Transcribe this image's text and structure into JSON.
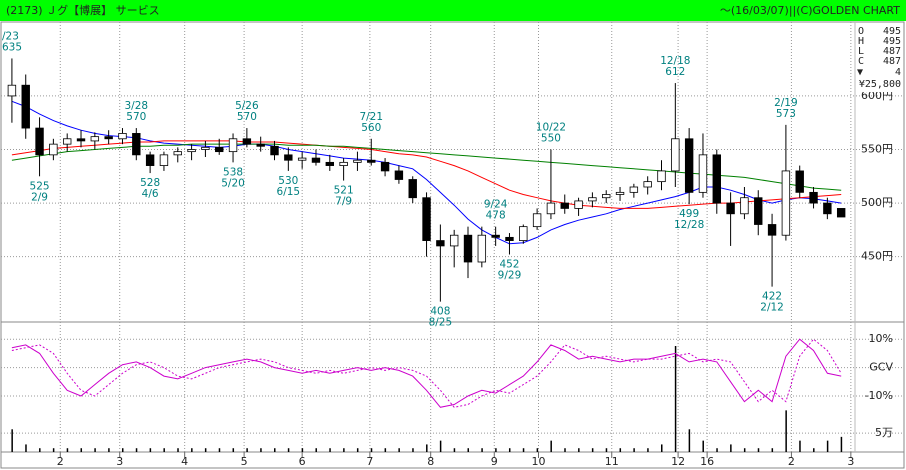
{
  "chart_data": {
    "type": "candlestick",
    "title": "(2173) Ｊグ【博展】 サービス",
    "subtitle": "～(16/03/07)||(C)GOLDEN CHART",
    "xlim": [
      -0.5,
      61
    ],
    "xticks": [
      {
        "value": 3.5,
        "label": "2"
      },
      {
        "value": 7.8,
        "label": "3"
      },
      {
        "value": 12.5,
        "label": "4"
      },
      {
        "value": 16.8,
        "label": "5"
      },
      {
        "value": 21,
        "label": "6"
      },
      {
        "value": 25.9,
        "label": "7"
      },
      {
        "value": 30.3,
        "label": "8"
      },
      {
        "value": 34.9,
        "label": "9"
      },
      {
        "value": 38.1,
        "label": "10"
      },
      {
        "value": 43.4,
        "label": "11"
      },
      {
        "value": 48.2,
        "label": "12"
      },
      {
        "value": 50.3,
        "label": "16"
      },
      {
        "value": 56.4,
        "label": "2"
      },
      {
        "value": 60.7,
        "label": "3"
      }
    ],
    "ylim": [
      389,
      669
    ],
    "yticks": [
      {
        "value": 450,
        "label": "450円"
      },
      {
        "value": 500,
        "label": "500円"
      },
      {
        "value": 550,
        "label": "550円"
      },
      {
        "value": 600,
        "label": "600円"
      }
    ],
    "grid": true,
    "candles": {
      "open": [
        600,
        610,
        570,
        545,
        555,
        560,
        558,
        562,
        560,
        565,
        545,
        535,
        545,
        548,
        550,
        552,
        548,
        560,
        555,
        553,
        545,
        540,
        542,
        538,
        535,
        538,
        540,
        538,
        530,
        522,
        505,
        465,
        460,
        470,
        445,
        470,
        468,
        465,
        478,
        490,
        500,
        495,
        502,
        505,
        508,
        510,
        515,
        520,
        530,
        560,
        510,
        545,
        500,
        490,
        505,
        480,
        470,
        530,
        510,
        500,
        495
      ],
      "high": [
        635,
        620,
        580,
        560,
        565,
        568,
        566,
        568,
        570,
        570,
        548,
        548,
        552,
        555,
        558,
        560,
        565,
        570,
        562,
        558,
        552,
        548,
        550,
        545,
        542,
        548,
        560,
        542,
        535,
        525,
        510,
        480,
        475,
        478,
        478,
        478,
        472,
        480,
        495,
        550,
        508,
        505,
        510,
        512,
        515,
        518,
        525,
        540,
        612,
        570,
        565,
        550,
        510,
        515,
        512,
        490,
        573,
        535,
        515,
        505,
        495
      ],
      "low": [
        575,
        560,
        525,
        540,
        548,
        552,
        550,
        555,
        555,
        540,
        528,
        530,
        538,
        540,
        543,
        545,
        538,
        552,
        548,
        540,
        530,
        532,
        535,
        530,
        521,
        530,
        535,
        525,
        518,
        500,
        450,
        408,
        440,
        430,
        440,
        460,
        452,
        462,
        475,
        485,
        490,
        488,
        496,
        500,
        502,
        505,
        508,
        512,
        515,
        499,
        505,
        490,
        460,
        485,
        470,
        422,
        465,
        505,
        495,
        485,
        487
      ],
      "close": [
        610,
        570,
        545,
        555,
        560,
        558,
        562,
        560,
        565,
        545,
        535,
        545,
        548,
        550,
        552,
        548,
        560,
        555,
        553,
        545,
        540,
        542,
        538,
        535,
        538,
        540,
        538,
        530,
        522,
        505,
        465,
        460,
        470,
        445,
        470,
        468,
        465,
        478,
        490,
        500,
        495,
        502,
        505,
        508,
        510,
        515,
        520,
        530,
        560,
        510,
        545,
        500,
        490,
        505,
        480,
        470,
        530,
        510,
        500,
        490,
        487
      ],
      "up_color": "#ffffff",
      "down_color": "#000000",
      "edge_color": "#000000"
    },
    "series": [
      {
        "color": "#0000ff",
        "values": [
          595,
          590,
          583,
          577,
          572,
          568,
          565,
          563,
          562,
          561,
          558,
          556,
          555,
          554,
          553,
          552,
          553,
          555,
          555,
          553,
          550,
          548,
          546,
          544,
          542,
          541,
          540,
          538,
          535,
          532,
          522,
          510,
          498,
          485,
          475,
          468,
          462,
          463,
          468,
          475,
          480,
          484,
          487,
          490,
          494,
          497,
          500,
          503,
          506,
          510,
          515,
          515,
          512,
          508,
          503,
          500,
          503,
          505,
          504,
          502,
          500
        ]
      },
      {
        "color": "#ff0000",
        "values": [
          545,
          547,
          549,
          551,
          552,
          553,
          554,
          555,
          556,
          557,
          557,
          558,
          558,
          558,
          558,
          558,
          558,
          557,
          557,
          557,
          556,
          555,
          554,
          553,
          552,
          551,
          550,
          548,
          546,
          545,
          543,
          539,
          535,
          530,
          524,
          518,
          512,
          508,
          505,
          502,
          500,
          498,
          497,
          496,
          495,
          495,
          495,
          496,
          497,
          498,
          499,
          500,
          500,
          501,
          502,
          503,
          504,
          505,
          506,
          507,
          508
        ]
      },
      {
        "color": "#008000",
        "values": [
          540,
          542,
          544,
          546,
          548,
          549,
          550,
          551,
          552,
          553,
          553,
          554,
          554,
          555,
          555,
          555,
          555,
          555,
          555,
          555,
          554,
          554,
          554,
          553,
          553,
          552,
          551,
          550,
          549,
          548,
          547,
          546,
          545,
          544,
          543,
          542,
          541,
          540,
          539,
          538,
          537,
          536,
          535,
          534,
          533,
          532,
          531,
          530,
          529,
          528,
          527,
          526,
          525,
          524,
          522,
          520,
          518,
          516,
          514,
          513,
          512
        ]
      }
    ],
    "annotations": [
      {
        "index": 0,
        "price": 635,
        "date": "/23",
        "side": "high"
      },
      {
        "index": 2,
        "price": 525,
        "date": "2/9",
        "side": "low"
      },
      {
        "index": 9,
        "price": 570,
        "date": "3/28",
        "side": "high"
      },
      {
        "index": 10,
        "price": 528,
        "date": "4/6",
        "side": "low"
      },
      {
        "index": 16,
        "price": 538,
        "date": "5/20",
        "side": "low"
      },
      {
        "index": 17,
        "price": 570,
        "date": "5/26",
        "side": "high"
      },
      {
        "index": 20,
        "price": 530,
        "date": "6/15",
        "side": "low"
      },
      {
        "index": 24,
        "price": 521,
        "date": "7/9",
        "side": "low"
      },
      {
        "index": 26,
        "price": 560,
        "date": "7/21",
        "side": "high"
      },
      {
        "index": 31,
        "price": 408,
        "date": "8/25",
        "side": "low"
      },
      {
        "index": 35,
        "price": 478,
        "date": "9/24",
        "side": "high"
      },
      {
        "index": 36,
        "price": 452,
        "date": "9/29",
        "side": "low"
      },
      {
        "index": 39,
        "price": 550,
        "date": "10/22",
        "side": "high"
      },
      {
        "index": 48,
        "price": 612,
        "date": "12/18",
        "side": "high"
      },
      {
        "index": 49,
        "price": 499,
        "date": "12/28",
        "side": "low"
      },
      {
        "index": 55,
        "price": 422,
        "date": "2/12",
        "side": "low"
      },
      {
        "index": 56,
        "price": 573,
        "date": "2/19",
        "side": "high"
      }
    ],
    "oscillator": {
      "ylim": [
        -16,
        15
      ],
      "yticks": [
        {
          "value": 10,
          "label": "10%"
        },
        {
          "value": 0,
          "label": "GCV"
        },
        {
          "value": -10,
          "label": "-10%"
        }
      ],
      "series": [
        {
          "color": "#cc00cc",
          "dashed": false,
          "values": [
            7,
            8,
            5,
            -2,
            -8,
            -10,
            -6,
            -2,
            1,
            2,
            0,
            -3,
            -4,
            -2,
            0,
            1,
            2,
            3,
            2,
            0,
            -1,
            -2,
            -1,
            -2,
            -1,
            0,
            -1,
            0,
            -1,
            -3,
            -8,
            -14,
            -13,
            -10,
            -8,
            -9,
            -6,
            -3,
            2,
            8,
            6,
            3,
            4,
            3,
            2,
            3,
            3,
            4,
            5,
            2,
            3,
            2,
            -5,
            -12,
            -8,
            -12,
            4,
            10,
            6,
            -2,
            -3
          ]
        },
        {
          "color": "#cc00cc",
          "dashed": true,
          "values": [
            6,
            7,
            8,
            5,
            -2,
            -8,
            -10,
            -6,
            -2,
            1,
            2,
            0,
            -3,
            -4,
            -2,
            0,
            1,
            2,
            3,
            2,
            0,
            -1,
            -2,
            -1,
            -2,
            -1,
            0,
            -1,
            0,
            -1,
            -3,
            -8,
            -14,
            -13,
            -10,
            -8,
            -9,
            -6,
            -3,
            2,
            8,
            6,
            3,
            4,
            3,
            2,
            3,
            3,
            4,
            5,
            2,
            3,
            2,
            -5,
            -12,
            -8,
            -12,
            4,
            10,
            6,
            -2
          ]
        }
      ]
    },
    "volume": {
      "color": "#000000",
      "ylim": [
        0,
        28
      ],
      "yticks": [
        {
          "value": 5,
          "label": "5万"
        }
      ],
      "values": [
        6,
        2,
        1,
        1,
        1,
        1,
        1,
        1,
        1,
        1,
        1,
        1,
        1,
        1,
        1,
        1,
        1,
        1,
        1,
        1,
        1,
        1,
        1,
        1,
        1,
        1,
        1,
        1,
        1,
        1,
        2,
        3,
        1,
        1,
        1,
        1,
        1,
        1,
        1,
        3,
        1,
        1,
        1,
        1,
        1,
        1,
        1,
        2,
        28,
        6,
        3,
        1,
        2,
        1,
        1,
        1,
        11,
        3,
        1,
        3,
        4
      ]
    },
    "quote": {
      "labels": [
        "O",
        "H",
        "L",
        "C"
      ],
      "values": [
        495,
        495,
        487,
        487
      ],
      "change_symbol": "▼",
      "change": 4,
      "amount": "¥25,800"
    }
  }
}
